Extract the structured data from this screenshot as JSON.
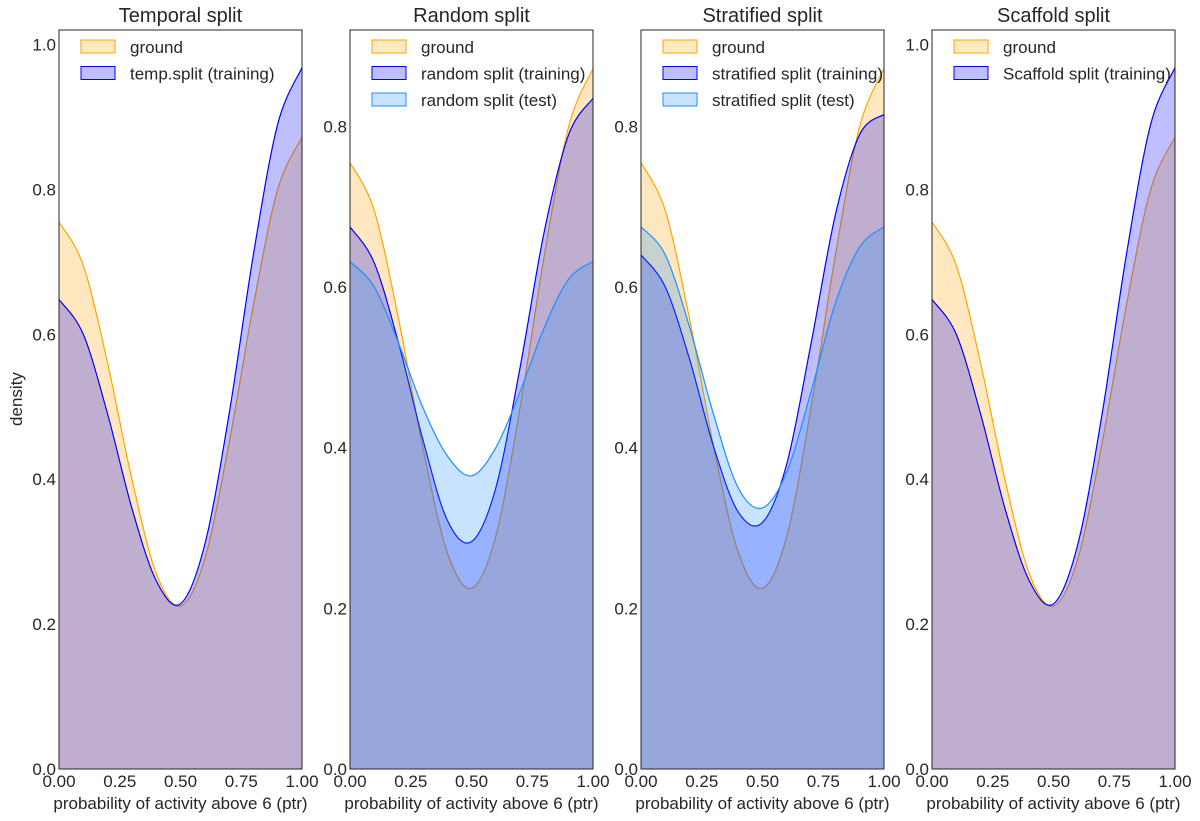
{
  "figure": {
    "ylabel": "density",
    "xlabel": "probability of activity above 6 (ptr)"
  },
  "chart_data": [
    {
      "type": "area",
      "title": "Temporal split",
      "xlabel": "probability of activity above 6 (ptr)",
      "ylabel": "density",
      "xlim": [
        0,
        1
      ],
      "ylim": [
        0,
        1.02
      ],
      "xticks": [
        0,
        0.25,
        0.5,
        0.75,
        1
      ],
      "xtick_labels": [
        "0.00",
        "0.25",
        "0.50",
        "0.75",
        "1.00"
      ],
      "yticks": [
        0,
        0.2,
        0.4,
        0.6,
        0.8,
        1.0
      ],
      "ytick_labels": [
        "0.0",
        "0.2",
        "0.4",
        "0.6",
        "0.8",
        "1.0"
      ],
      "grid": false,
      "legend_position": "top-left",
      "series": [
        {
          "name": "ground",
          "color": "#FFA500",
          "x": [
            0,
            0.1,
            0.2,
            0.3,
            0.4,
            0.5,
            0.6,
            0.7,
            0.8,
            0.9,
            1.0
          ],
          "values": [
            0.755,
            0.695,
            0.56,
            0.4,
            0.27,
            0.225,
            0.29,
            0.45,
            0.64,
            0.8,
            0.872
          ]
        },
        {
          "name": "temp.split (training)",
          "color": "#0000FF",
          "x": [
            0,
            0.1,
            0.2,
            0.3,
            0.4,
            0.5,
            0.6,
            0.7,
            0.8,
            0.9,
            1.0
          ],
          "values": [
            0.648,
            0.6,
            0.49,
            0.36,
            0.26,
            0.228,
            0.31,
            0.49,
            0.71,
            0.89,
            0.968
          ]
        }
      ]
    },
    {
      "type": "area",
      "title": "Random split",
      "xlabel": "probability of activity above 6 (ptr)",
      "ylabel": "",
      "xlim": [
        0,
        1
      ],
      "ylim": [
        0,
        0.92
      ],
      "xticks": [
        0,
        0.25,
        0.5,
        0.75,
        1
      ],
      "xtick_labels": [
        "0.00",
        "0.25",
        "0.50",
        "0.75",
        "1.00"
      ],
      "yticks": [
        0,
        0.2,
        0.4,
        0.6,
        0.8
      ],
      "ytick_labels": [
        "0.0",
        "0.2",
        "0.4",
        "0.6",
        "0.8"
      ],
      "grid": false,
      "legend_position": "top-left",
      "series": [
        {
          "name": "ground",
          "color": "#FFA500",
          "x": [
            0,
            0.1,
            0.2,
            0.3,
            0.4,
            0.5,
            0.6,
            0.7,
            0.8,
            0.9,
            1.0
          ],
          "values": [
            0.755,
            0.695,
            0.56,
            0.4,
            0.27,
            0.225,
            0.29,
            0.45,
            0.64,
            0.8,
            0.872
          ]
        },
        {
          "name": "random split (training)",
          "color": "#0000FF",
          "x": [
            0,
            0.1,
            0.2,
            0.3,
            0.4,
            0.5,
            0.6,
            0.7,
            0.8,
            0.9,
            1.0
          ],
          "values": [
            0.675,
            0.63,
            0.53,
            0.41,
            0.31,
            0.283,
            0.35,
            0.5,
            0.67,
            0.79,
            0.835
          ]
        },
        {
          "name": "random split (test)",
          "color": "#1E90FF",
          "x": [
            0,
            0.1,
            0.2,
            0.3,
            0.4,
            0.5,
            0.6,
            0.7,
            0.8,
            0.9,
            1.0
          ],
          "values": [
            0.632,
            0.6,
            0.53,
            0.45,
            0.39,
            0.365,
            0.4,
            0.47,
            0.55,
            0.61,
            0.632
          ]
        }
      ]
    },
    {
      "type": "area",
      "title": "Stratified split",
      "xlabel": "probability of activity above 6 (ptr)",
      "ylabel": "",
      "xlim": [
        0,
        1
      ],
      "ylim": [
        0,
        0.92
      ],
      "xticks": [
        0,
        0.25,
        0.5,
        0.75,
        1
      ],
      "xtick_labels": [
        "0.00",
        "0.25",
        "0.50",
        "0.75",
        "1.00"
      ],
      "yticks": [
        0,
        0.2,
        0.4,
        0.6,
        0.8
      ],
      "ytick_labels": [
        "0.0",
        "0.2",
        "0.4",
        "0.6",
        "0.8"
      ],
      "grid": false,
      "legend_position": "top-left",
      "series": [
        {
          "name": "ground",
          "color": "#FFA500",
          "x": [
            0,
            0.1,
            0.2,
            0.3,
            0.4,
            0.5,
            0.6,
            0.7,
            0.8,
            0.9,
            1.0
          ],
          "values": [
            0.755,
            0.695,
            0.56,
            0.4,
            0.27,
            0.225,
            0.29,
            0.45,
            0.64,
            0.8,
            0.872
          ]
        },
        {
          "name": "stratified split (training)",
          "color": "#0000FF",
          "x": [
            0,
            0.1,
            0.2,
            0.3,
            0.4,
            0.5,
            0.6,
            0.7,
            0.8,
            0.9,
            1.0
          ],
          "values": [
            0.64,
            0.6,
            0.51,
            0.4,
            0.32,
            0.307,
            0.38,
            0.53,
            0.69,
            0.79,
            0.815
          ]
        },
        {
          "name": "stratified split (test)",
          "color": "#1E90FF",
          "x": [
            0,
            0.1,
            0.2,
            0.3,
            0.4,
            0.5,
            0.6,
            0.7,
            0.8,
            0.9,
            1.0
          ],
          "values": [
            0.675,
            0.64,
            0.55,
            0.44,
            0.35,
            0.325,
            0.37,
            0.47,
            0.58,
            0.65,
            0.675
          ]
        }
      ]
    },
    {
      "type": "area",
      "title": "Scaffold split",
      "xlabel": "probability of activity above 6 (ptr)",
      "ylabel": "",
      "xlim": [
        0,
        1
      ],
      "ylim": [
        0,
        1.02
      ],
      "xticks": [
        0,
        0.25,
        0.5,
        0.75,
        1
      ],
      "xtick_labels": [
        "0.00",
        "0.25",
        "0.50",
        "0.75",
        "1.00"
      ],
      "yticks": [
        0,
        0.2,
        0.4,
        0.6,
        0.8,
        1.0
      ],
      "ytick_labels": [
        "0.0",
        "0.2",
        "0.4",
        "0.6",
        "0.8",
        "1.0"
      ],
      "grid": false,
      "legend_position": "top-left",
      "series": [
        {
          "name": "ground",
          "color": "#FFA500",
          "x": [
            0,
            0.1,
            0.2,
            0.3,
            0.4,
            0.5,
            0.6,
            0.7,
            0.8,
            0.9,
            1.0
          ],
          "values": [
            0.755,
            0.695,
            0.56,
            0.4,
            0.27,
            0.225,
            0.29,
            0.45,
            0.64,
            0.8,
            0.872
          ]
        },
        {
          "name": "Scaffold split (training)",
          "color": "#0000FF",
          "x": [
            0,
            0.1,
            0.2,
            0.3,
            0.4,
            0.5,
            0.6,
            0.7,
            0.8,
            0.9,
            1.0
          ],
          "values": [
            0.648,
            0.6,
            0.49,
            0.36,
            0.26,
            0.228,
            0.31,
            0.49,
            0.71,
            0.89,
            0.968
          ]
        }
      ]
    }
  ]
}
